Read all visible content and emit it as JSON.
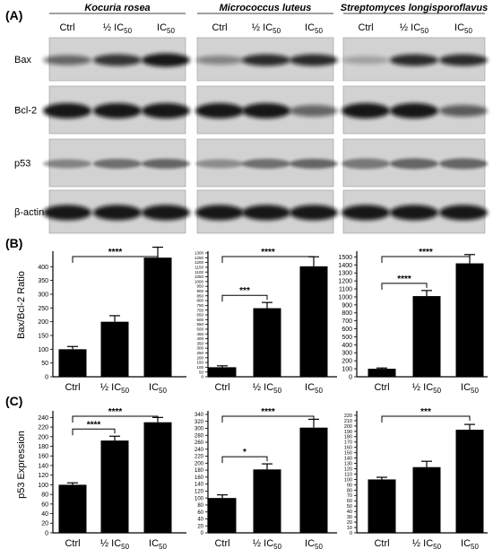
{
  "panels": {
    "a": "(A)",
    "b": "(B)",
    "c": "(C)"
  },
  "western_blot": {
    "species": [
      "Kocuria rosea",
      "Micrococcus luteus",
      "Streptomyces longisporoflavus"
    ],
    "lanes": [
      "Ctrl",
      "½ IC",
      "IC"
    ],
    "lane_subscript": "50",
    "proteins": [
      "Bax",
      "Bcl-2",
      "p53",
      "β-actin"
    ]
  },
  "x_labels": {
    "ctrl": "Ctrl",
    "half": "½ IC",
    "ic": "IC",
    "sub": "50"
  },
  "chart_data": [
    {
      "type": "bar",
      "panel": "B",
      "title": "",
      "ylabel": "Bax/Bcl-2 Ratio",
      "xlabel": "",
      "categories": [
        "Ctrl",
        "½ IC50",
        "IC50"
      ],
      "values": [
        100,
        200,
        433
      ],
      "errors": [
        10,
        22,
        38
      ],
      "ylim": [
        0,
        450
      ],
      "yticks": [
        0,
        50,
        100,
        150,
        200,
        250,
        300,
        350,
        400
      ],
      "significance": [
        {
          "from": 0,
          "to": 2,
          "label": "****"
        }
      ]
    },
    {
      "type": "bar",
      "panel": "B",
      "title": "",
      "ylabel": "",
      "xlabel": "",
      "categories": [
        "Ctrl",
        "½ IC50",
        "IC50"
      ],
      "values": [
        100,
        720,
        1160
      ],
      "errors": [
        15,
        60,
        100
      ],
      "ylim": [
        0,
        1300
      ],
      "yticks": [
        0,
        50,
        100,
        150,
        200,
        250,
        300,
        350,
        400,
        450,
        500,
        550,
        600,
        650,
        700,
        750,
        800,
        850,
        900,
        950,
        1000,
        1050,
        1100,
        1150,
        1200,
        1250,
        1300
      ],
      "significance": [
        {
          "from": 0,
          "to": 1,
          "label": "***"
        },
        {
          "from": 0,
          "to": 2,
          "label": "****"
        }
      ]
    },
    {
      "type": "bar",
      "panel": "B",
      "title": "",
      "ylabel": "",
      "xlabel": "",
      "categories": [
        "Ctrl",
        "½ IC50",
        "IC50"
      ],
      "values": [
        100,
        1010,
        1420
      ],
      "errors": [
        10,
        70,
        110
      ],
      "ylim": [
        0,
        1550
      ],
      "yticks": [
        0,
        100,
        200,
        300,
        400,
        500,
        600,
        700,
        800,
        900,
        1000,
        1100,
        1200,
        1300,
        1400,
        1500
      ],
      "significance": [
        {
          "from": 0,
          "to": 1,
          "label": "****"
        },
        {
          "from": 0,
          "to": 2,
          "label": "****"
        }
      ]
    },
    {
      "type": "bar",
      "panel": "C",
      "title": "",
      "ylabel": "p53 Expression",
      "xlabel": "",
      "categories": [
        "Ctrl",
        "½ IC50",
        "IC50"
      ],
      "values": [
        100,
        192,
        230
      ],
      "errors": [
        4,
        9,
        10
      ],
      "ylim": [
        0,
        250
      ],
      "yticks": [
        0,
        20,
        40,
        60,
        80,
        100,
        120,
        140,
        160,
        180,
        200,
        220,
        240
      ],
      "significance": [
        {
          "from": 0,
          "to": 1,
          "label": "****"
        },
        {
          "from": 0,
          "to": 2,
          "label": "****"
        }
      ]
    },
    {
      "type": "bar",
      "panel": "C",
      "title": "",
      "ylabel": "",
      "xlabel": "",
      "categories": [
        "Ctrl",
        "½ IC50",
        "IC50"
      ],
      "values": [
        100,
        182,
        302
      ],
      "errors": [
        9,
        16,
        24
      ],
      "ylim": [
        0,
        345
      ],
      "yticks": [
        0,
        20,
        40,
        60,
        80,
        100,
        120,
        140,
        160,
        180,
        200,
        220,
        240,
        260,
        280,
        300,
        320,
        340
      ],
      "significance": [
        {
          "from": 0,
          "to": 1,
          "label": "*"
        },
        {
          "from": 0,
          "to": 2,
          "label": "****"
        }
      ]
    },
    {
      "type": "bar",
      "panel": "C",
      "title": "",
      "ylabel": "",
      "xlabel": "",
      "categories": [
        "Ctrl",
        "½ IC50",
        "IC50"
      ],
      "values": [
        100,
        123,
        193
      ],
      "errors": [
        4,
        11,
        10
      ],
      "ylim": [
        0,
        225
      ],
      "yticks": [
        0,
        10,
        20,
        30,
        40,
        50,
        60,
        70,
        80,
        90,
        100,
        110,
        120,
        130,
        140,
        150,
        160,
        170,
        180,
        190,
        200,
        210,
        220
      ],
      "significance": [
        {
          "from": 0,
          "to": 2,
          "label": "***"
        }
      ]
    }
  ]
}
